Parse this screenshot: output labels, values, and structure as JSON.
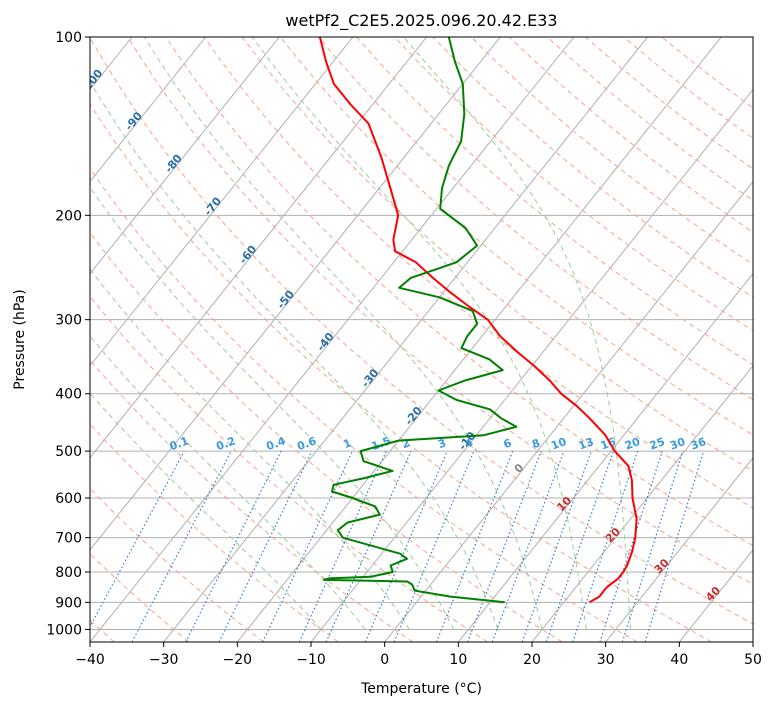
{
  "chart_data": {
    "type": "line",
    "diagram": "skew-t log-p",
    "title": "wetPf2_C2E5.2025.096.20.42.E33",
    "xlabel": "Temperature (°C)",
    "ylabel": "Pressure (hPa)",
    "xlim": [
      -40,
      50
    ],
    "ylim": [
      1050,
      100
    ],
    "y_scale": "log",
    "grid": true,
    "x_ticks": [
      "−40",
      "−30",
      "−20",
      "−10",
      "0",
      "10",
      "20",
      "30",
      "40",
      "50"
    ],
    "x_tick_values": [
      -40,
      -30,
      -20,
      -10,
      0,
      10,
      20,
      30,
      40,
      50
    ],
    "y_ticks": [
      "100",
      "200",
      "300",
      "400",
      "500",
      "600",
      "700",
      "800",
      "900",
      "1000"
    ],
    "y_tick_values": [
      100,
      200,
      300,
      400,
      500,
      600,
      700,
      800,
      900,
      1000
    ],
    "series": [
      {
        "color": "#ff0000",
        "points": [
          {
            "p": 900,
            "t": 23.5
          },
          {
            "p": 880,
            "t": 24.2
          },
          {
            "p": 850,
            "t": 24.2
          },
          {
            "p": 820,
            "t": 24.8
          },
          {
            "p": 800,
            "t": 24.8
          },
          {
            "p": 780,
            "t": 24.6
          },
          {
            "p": 740,
            "t": 23.8
          },
          {
            "p": 700,
            "t": 22.7
          },
          {
            "p": 650,
            "t": 20.8
          },
          {
            "p": 600,
            "t": 18.0
          },
          {
            "p": 560,
            "t": 16.0
          },
          {
            "p": 530,
            "t": 14.0
          },
          {
            "p": 500,
            "t": 10.5
          },
          {
            "p": 470,
            "t": 7.5
          },
          {
            "p": 440,
            "t": 3.5
          },
          {
            "p": 420,
            "t": 0.5
          },
          {
            "p": 400,
            "t": -3.0
          },
          {
            "p": 380,
            "t": -6.0
          },
          {
            "p": 360,
            "t": -9.5
          },
          {
            "p": 340,
            "t": -13.5
          },
          {
            "p": 320,
            "t": -17.5
          },
          {
            "p": 300,
            "t": -21.0
          },
          {
            "p": 285,
            "t": -25.0
          },
          {
            "p": 270,
            "t": -29.0
          },
          {
            "p": 255,
            "t": -33.0
          },
          {
            "p": 240,
            "t": -37.0
          },
          {
            "p": 230,
            "t": -41.0
          },
          {
            "p": 220,
            "t": -42.5
          },
          {
            "p": 200,
            "t": -44.5
          },
          {
            "p": 180,
            "t": -48.5
          },
          {
            "p": 160,
            "t": -53.0
          },
          {
            "p": 140,
            "t": -58.5
          },
          {
            "p": 130,
            "t": -63.0
          },
          {
            "p": 120,
            "t": -67.5
          },
          {
            "p": 110,
            "t": -71.0
          },
          {
            "p": 100,
            "t": -74.5
          }
        ]
      },
      {
        "color": "#008000",
        "points": [
          {
            "p": 900,
            "t": 12.0
          },
          {
            "p": 880,
            "t": 4.0
          },
          {
            "p": 860,
            "t": -1.5
          },
          {
            "p": 840,
            "t": -2.5
          },
          {
            "p": 830,
            "t": -3.5
          },
          {
            "p": 825,
            "t": -15.0
          },
          {
            "p": 820,
            "t": -14.5
          },
          {
            "p": 815,
            "t": -9.0
          },
          {
            "p": 800,
            "t": -6.5
          },
          {
            "p": 780,
            "t": -7.5
          },
          {
            "p": 760,
            "t": -6.0
          },
          {
            "p": 745,
            "t": -7.5
          },
          {
            "p": 700,
            "t": -17.0
          },
          {
            "p": 680,
            "t": -18.5
          },
          {
            "p": 660,
            "t": -18.0
          },
          {
            "p": 640,
            "t": -14.5
          },
          {
            "p": 620,
            "t": -16.0
          },
          {
            "p": 600,
            "t": -20.0
          },
          {
            "p": 585,
            "t": -23.5
          },
          {
            "p": 570,
            "t": -24.0
          },
          {
            "p": 555,
            "t": -20.5
          },
          {
            "p": 540,
            "t": -17.5
          },
          {
            "p": 520,
            "t": -22.5
          },
          {
            "p": 500,
            "t": -24.0
          },
          {
            "p": 480,
            "t": -20.0
          },
          {
            "p": 470,
            "t": -9.0
          },
          {
            "p": 455,
            "t": -5.5
          },
          {
            "p": 440,
            "t": -8.5
          },
          {
            "p": 425,
            "t": -11.0
          },
          {
            "p": 410,
            "t": -16.5
          },
          {
            "p": 395,
            "t": -20.0
          },
          {
            "p": 380,
            "t": -17.5
          },
          {
            "p": 365,
            "t": -13.5
          },
          {
            "p": 350,
            "t": -16.5
          },
          {
            "p": 335,
            "t": -21.5
          },
          {
            "p": 320,
            "t": -22.0
          },
          {
            "p": 305,
            "t": -22.0
          },
          {
            "p": 290,
            "t": -24.0
          },
          {
            "p": 275,
            "t": -30.0
          },
          {
            "p": 265,
            "t": -36.5
          },
          {
            "p": 255,
            "t": -36.0
          },
          {
            "p": 240,
            "t": -31.5
          },
          {
            "p": 225,
            "t": -30.5
          },
          {
            "p": 210,
            "t": -34.0
          },
          {
            "p": 195,
            "t": -39.5
          },
          {
            "p": 180,
            "t": -41.5
          },
          {
            "p": 165,
            "t": -43.0
          },
          {
            "p": 150,
            "t": -44.0
          },
          {
            "p": 135,
            "t": -46.5
          },
          {
            "p": 120,
            "t": -50.0
          },
          {
            "p": 110,
            "t": -53.5
          },
          {
            "p": 100,
            "t": -57.0
          }
        ]
      }
    ],
    "dry_adiabat_labels": [
      "-100",
      "-90",
      "-80",
      "-70",
      "-60",
      "-50",
      "-40",
      "-30",
      "-20",
      "-10"
    ],
    "mixing_ratio_labels": [
      "0.1",
      "0.2",
      "0.4",
      "0.6",
      "1",
      "1.5",
      "2",
      "3",
      "4",
      "6",
      "8",
      "10",
      "13",
      "16",
      "20",
      "25",
      "30",
      "36"
    ],
    "isotherm_labels": [
      "0",
      "10",
      "20",
      "30",
      "40"
    ],
    "colors": {
      "temperature": "#ff0000",
      "dewpoint": "#008000",
      "isotherm_grid": "#b0b0b0",
      "dry_adiabat": "#f4a58a",
      "moist_adiabat": "#99cc99",
      "mixing_ratio": "#2c7fd6",
      "dry_adiabat_label": "#2a6fa8",
      "mixing_ratio_label": "#3a9ae0",
      "isotherm_label": "#cc2a2a",
      "zero_label": "#888888"
    }
  }
}
